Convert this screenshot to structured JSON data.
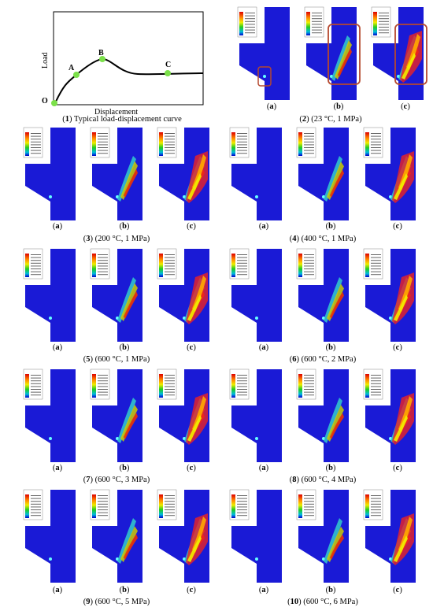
{
  "curve": {
    "xlabel": "Displacement",
    "ylabel": "Load",
    "points": [
      "O",
      "A",
      "B",
      "C"
    ],
    "caption_num": "1",
    "caption_text": " Typical load-displacement curve"
  },
  "groups": [
    {
      "num": "2",
      "cond": " (23 °C, 1 MPa)"
    },
    {
      "num": "3",
      "cond": " (200 °C, 1 MPa)"
    },
    {
      "num": "4",
      "cond": " (400 °C, 1 MPa)"
    },
    {
      "num": "5",
      "cond": " (600 °C, 1 MPa)"
    },
    {
      "num": "6",
      "cond": " (600 °C, 2 MPa)"
    },
    {
      "num": "7",
      "cond": " (600 °C, 3 MPa)"
    },
    {
      "num": "8",
      "cond": " (600 °C, 4 MPa)"
    },
    {
      "num": "9",
      "cond": " (600 °C, 5 MPa)"
    },
    {
      "num": "10",
      "cond": " (600 °C, 6 MPa)"
    }
  ],
  "sub_labels": [
    "a",
    "b",
    "c"
  ],
  "colors": {
    "specimen_blue": "#1a1ad6",
    "highlight_box": "#b5482e",
    "green_marker": "#7be04a"
  }
}
